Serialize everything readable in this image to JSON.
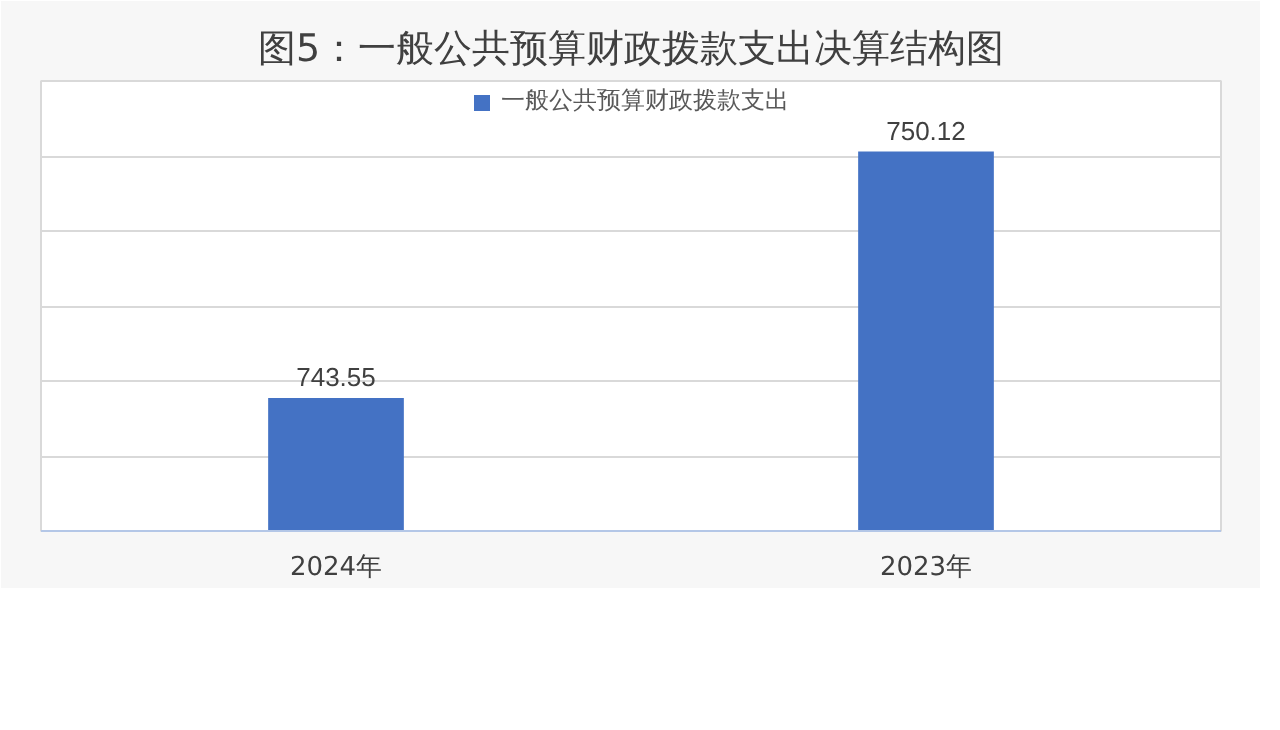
{
  "chart_data": {
    "type": "bar",
    "title": "图5：一般公共预算财政拨款支出决算结构图",
    "categories": [
      "2024年",
      "2023年"
    ],
    "series": [
      {
        "name": "一般公共预算财政拨款支出",
        "color": "#4472c4",
        "values": [
          743.55,
          750.12
        ]
      }
    ],
    "ylim": [
      740,
      752
    ],
    "yticks": [
      {
        "value": 740,
        "label": null
      },
      {
        "value": 742,
        "label": null
      },
      {
        "value": 744,
        "label": null
      },
      {
        "value": 746,
        "label": null
      },
      {
        "value": 748,
        "label": null
      },
      {
        "value": 750,
        "label": null
      },
      {
        "value": 752,
        "label": null
      }
    ],
    "tick_labels": "x",
    "grid": "y",
    "legend": "top",
    "data_labels": true
  }
}
